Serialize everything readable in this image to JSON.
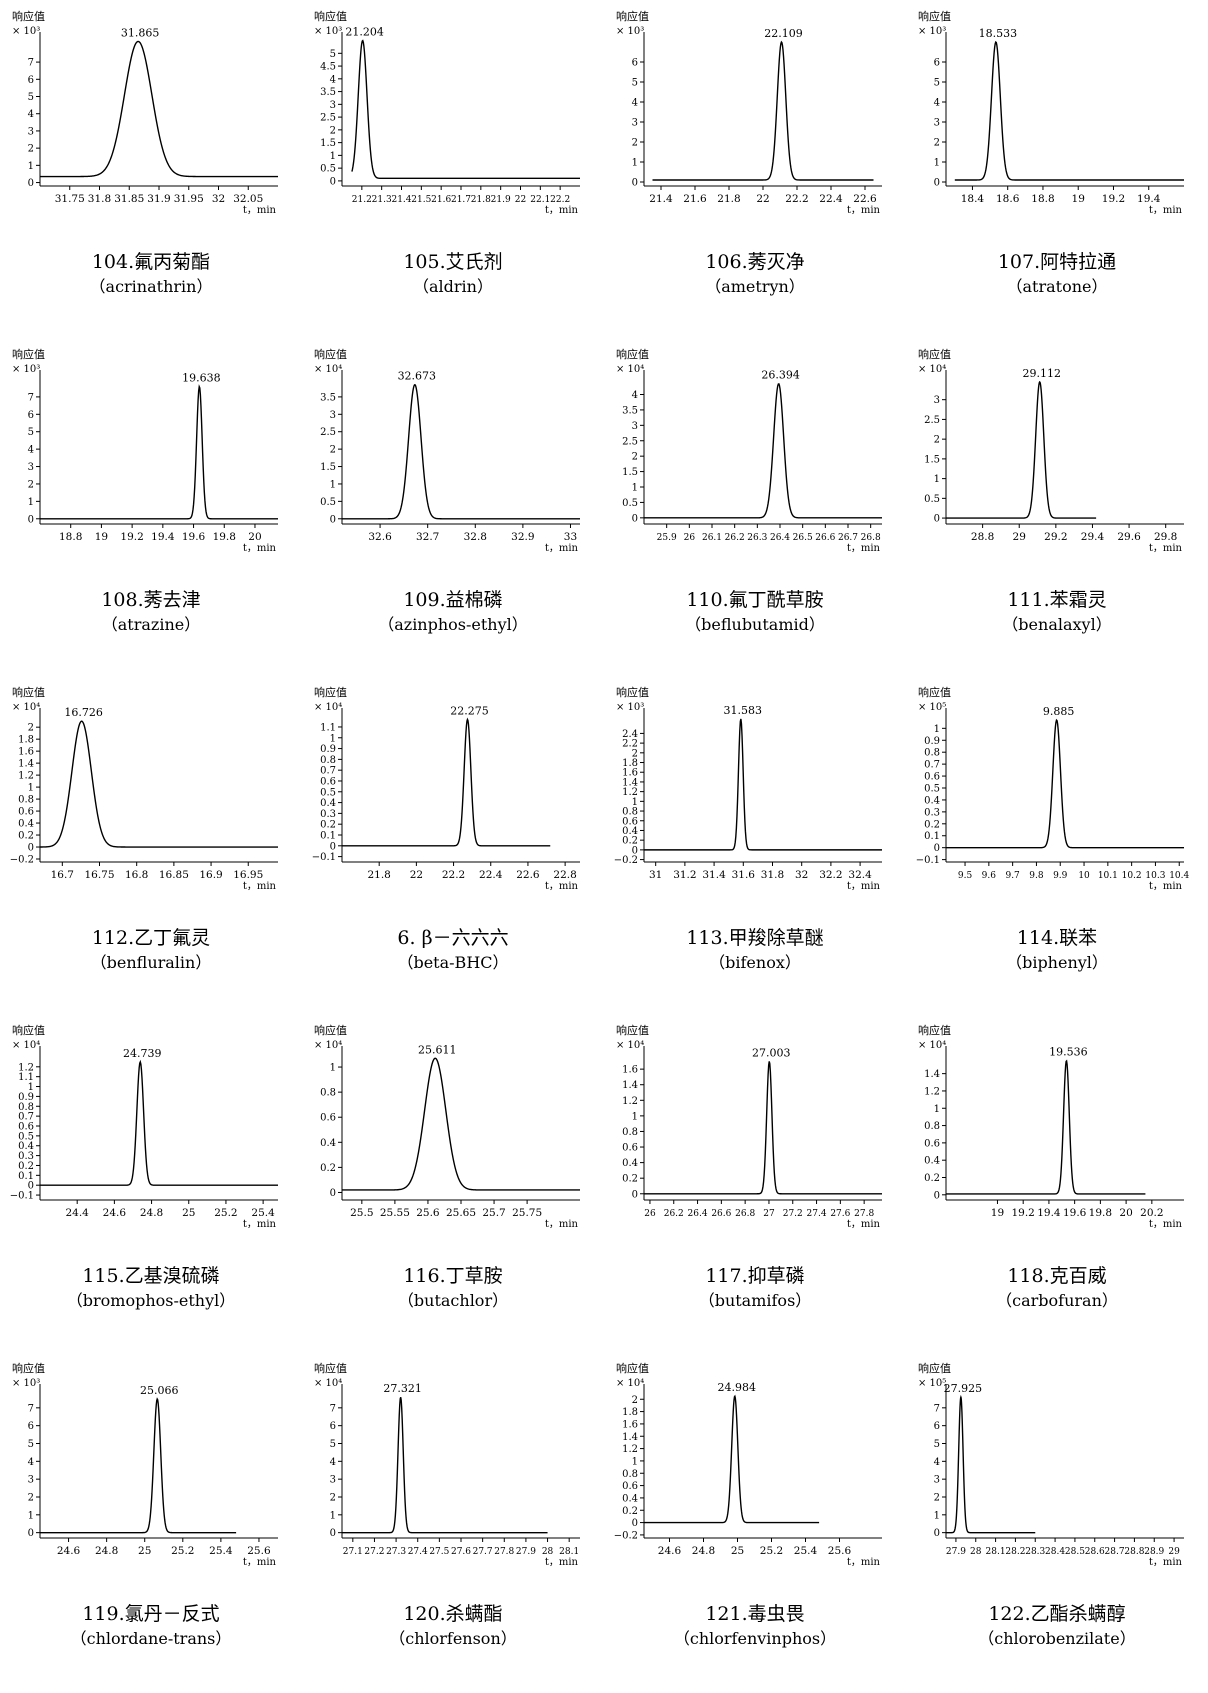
{
  "chart_data": [
    {
      "type": "line",
      "id": "c104",
      "caption_zh": "104.氟丙菊酯",
      "caption_en": "（acrinathrin）",
      "ylabel": "响应值",
      "yscale": "× 10³",
      "xunit": "t，min",
      "peak_label": "31.865",
      "xlim": [
        31.7,
        32.1
      ],
      "ylim": [
        -0.2,
        8.4
      ],
      "xticks": [
        "31.75",
        "31.8",
        "31.85",
        "31.9",
        "31.95",
        "32",
        "32.05"
      ],
      "yticks": [
        "0",
        "1",
        "2",
        "3",
        "4",
        "5",
        "6",
        "7"
      ],
      "peak": {
        "x": 31.865,
        "height": 8.2,
        "width": 0.023
      },
      "baseline": 0.35,
      "data_xrange": [
        31.7,
        32.1
      ]
    },
    {
      "type": "line",
      "id": "c105",
      "caption_zh": "105.艾氏剂",
      "caption_en": "（aldrin）",
      "ylabel": "响应值",
      "yscale": "× 10³",
      "xunit": "t，min",
      "peak_label": "21.204",
      "xlim": [
        21.1,
        22.3
      ],
      "ylim": [
        -0.2,
        5.6
      ],
      "xticks": [
        "21.2",
        "21.3",
        "21.4",
        "21.5",
        "21.6",
        "21.7",
        "21.8",
        "21.9",
        "22",
        "22.1",
        "22.2"
      ],
      "yticks": [
        "0",
        "0.5",
        "1",
        "1.5",
        "2",
        "2.5",
        "3",
        "3.5",
        "4",
        "4.5",
        "5"
      ],
      "peak": {
        "x": 21.204,
        "height": 5.5,
        "width": 0.022
      },
      "baseline": 0.1,
      "data_xrange": [
        21.15,
        22.3
      ]
    },
    {
      "type": "line",
      "id": "c106",
      "caption_zh": "106.莠灭净",
      "caption_en": "（ametryn）",
      "ylabel": "响应值",
      "yscale": "× 10³",
      "xunit": "t，min",
      "peak_label": "22.109",
      "xlim": [
        21.3,
        22.7
      ],
      "ylim": [
        -0.2,
        7.2
      ],
      "xticks": [
        "21.4",
        "21.6",
        "21.8",
        "22",
        "22.2",
        "22.4",
        "22.6"
      ],
      "yticks": [
        "0",
        "1",
        "2",
        "3",
        "4",
        "5",
        "6"
      ],
      "peak": {
        "x": 22.109,
        "height": 7.0,
        "width": 0.025
      },
      "baseline": 0.1,
      "data_xrange": [
        21.35,
        22.65
      ]
    },
    {
      "type": "line",
      "id": "c107",
      "caption_zh": "107.阿特拉通",
      "caption_en": "（atratone）",
      "ylabel": "响应值",
      "yscale": "× 10³",
      "xunit": "t，min",
      "peak_label": "18.533",
      "xlim": [
        18.25,
        19.6
      ],
      "ylim": [
        -0.2,
        7.2
      ],
      "xticks": [
        "18.4",
        "18.6",
        "18.8",
        "19",
        "19.2",
        "19.4"
      ],
      "yticks": [
        "0",
        "1",
        "2",
        "3",
        "4",
        "5",
        "6"
      ],
      "peak": {
        "x": 18.533,
        "height": 7.0,
        "width": 0.025
      },
      "baseline": 0.1,
      "data_xrange": [
        18.3,
        19.6
      ]
    },
    {
      "type": "line",
      "id": "c108",
      "caption_zh": "108.莠去津",
      "caption_en": "（atrazine）",
      "ylabel": "响应值",
      "yscale": "× 10³",
      "xunit": "t，min",
      "peak_label": "19.638",
      "xlim": [
        18.6,
        20.15
      ],
      "ylim": [
        -0.3,
        8.2
      ],
      "xticks": [
        "18.8",
        "19",
        "19.2",
        "19.4",
        "19.6",
        "19.8",
        "20"
      ],
      "yticks": [
        "0",
        "1",
        "2",
        "3",
        "4",
        "5",
        "6",
        "7"
      ],
      "peak": {
        "x": 19.638,
        "height": 7.6,
        "width": 0.018
      },
      "baseline": 0.0,
      "data_xrange": [
        18.6,
        20.15
      ]
    },
    {
      "type": "line",
      "id": "c109",
      "caption_zh": "109.益棉磷",
      "caption_en": "（azinphos-ethyl）",
      "ylabel": "响应值",
      "yscale": "× 10⁴",
      "xunit": "t，min",
      "peak_label": "32.673",
      "xlim": [
        32.52,
        33.02
      ],
      "ylim": [
        -0.15,
        4.1
      ],
      "xticks": [
        "32.6",
        "32.7",
        "32.8",
        "32.9",
        "33"
      ],
      "yticks": [
        "0",
        "0.5",
        "1",
        "1.5",
        "2",
        "2.5",
        "3",
        "3.5"
      ],
      "peak": {
        "x": 32.673,
        "height": 3.85,
        "width": 0.013
      },
      "baseline": 0.0,
      "data_xrange": [
        32.52,
        33.02
      ]
    },
    {
      "type": "line",
      "id": "c110",
      "caption_zh": "110.氟丁酰草胺",
      "caption_en": "（beflubutamid）",
      "ylabel": "响应值",
      "yscale": "× 10⁴",
      "xunit": "t，min",
      "peak_label": "26.394",
      "xlim": [
        25.8,
        26.85
      ],
      "ylim": [
        -0.2,
        4.6
      ],
      "xticks": [
        "25.9",
        "26",
        "26.1",
        "26.2",
        "26.3",
        "26.4",
        "26.5",
        "26.6",
        "26.7",
        "26.8"
      ],
      "yticks": [
        "0",
        "0.5",
        "1",
        "1.5",
        "2",
        "2.5",
        "3",
        "3.5",
        "4"
      ],
      "peak": {
        "x": 26.394,
        "height": 4.35,
        "width": 0.022
      },
      "baseline": 0.0,
      "data_xrange": [
        25.8,
        26.85
      ]
    },
    {
      "type": "line",
      "id": "c111",
      "caption_zh": "111.苯霜灵",
      "caption_en": "（benalaxyl）",
      "ylabel": "响应值",
      "yscale": "× 10⁴",
      "xunit": "t，min",
      "peak_label": "29.112",
      "xlim": [
        28.6,
        29.9
      ],
      "ylim": [
        -0.15,
        3.6
      ],
      "xticks": [
        "28.8",
        "29",
        "29.2",
        "29.4",
        "29.6",
        "29.8"
      ],
      "yticks": [
        "0",
        "0.5",
        "1",
        "1.5",
        "2",
        "2.5",
        "3"
      ],
      "peak": {
        "x": 29.112,
        "height": 3.45,
        "width": 0.022
      },
      "baseline": 0.0,
      "data_xrange": [
        28.6,
        29.42
      ]
    },
    {
      "type": "line",
      "id": "c112",
      "caption_zh": "112.乙丁氟灵",
      "caption_en": "（benfluralin）",
      "ylabel": "响应值",
      "yscale": "× 10⁴",
      "xunit": "t，min",
      "peak_label": "16.726",
      "xlim": [
        16.67,
        16.99
      ],
      "ylim": [
        -0.25,
        2.22
      ],
      "xticks": [
        "16.7",
        "16.75",
        "16.8",
        "16.85",
        "16.9",
        "16.95"
      ],
      "yticks": [
        "-0.2",
        "0",
        "0.2",
        "0.4",
        "0.6",
        "0.8",
        "1",
        "1.2",
        "1.4",
        "1.6",
        "1.8",
        "2"
      ],
      "peak": {
        "x": 16.726,
        "height": 2.1,
        "width": 0.013
      },
      "baseline": 0.0,
      "data_xrange": [
        16.67,
        16.99
      ]
    },
    {
      "type": "line",
      "id": "c113b",
      "caption_zh": "6. β－六六六",
      "caption_en": "（beta-BHC）",
      "ylabel": "响应值",
      "yscale": "× 10⁴",
      "xunit": "t，min",
      "peak_label": "22.275",
      "xlim": [
        21.6,
        22.88
      ],
      "ylim": [
        -0.15,
        1.22
      ],
      "xticks": [
        "21.8",
        "22",
        "22.2",
        "22.4",
        "22.6",
        "22.8"
      ],
      "yticks": [
        "-0.1",
        "0",
        "0.1",
        "0.2",
        "0.3",
        "0.4",
        "0.5",
        "0.6",
        "0.7",
        "0.8",
        "0.9",
        "1",
        "1.1"
      ],
      "peak": {
        "x": 22.275,
        "height": 1.17,
        "width": 0.018
      },
      "baseline": 0.0,
      "data_xrange": [
        21.6,
        22.72
      ]
    },
    {
      "type": "line",
      "id": "c113",
      "caption_zh": "113.甲羧除草醚",
      "caption_en": "（bifenox）",
      "ylabel": "响应值",
      "yscale": "× 10³",
      "xunit": "t，min",
      "peak_label": "31.583",
      "xlim": [
        30.92,
        32.55
      ],
      "ylim": [
        -0.25,
        2.8
      ],
      "xticks": [
        "31",
        "31.2",
        "31.4",
        "31.6",
        "31.8",
        "32",
        "32.2",
        "32.4"
      ],
      "yticks": [
        "-0.2",
        "0",
        "0.2",
        "0.4",
        "0.6",
        "0.8",
        "1",
        "1.2",
        "1.4",
        "1.6",
        "1.8",
        "2",
        "2.2",
        "2.4"
      ],
      "peak": {
        "x": 31.583,
        "height": 2.7,
        "width": 0.016
      },
      "baseline": 0.0,
      "data_xrange": [
        30.92,
        32.55
      ]
    },
    {
      "type": "line",
      "id": "c114",
      "caption_zh": "114.联苯",
      "caption_en": "（biphenyl）",
      "ylabel": "响应值",
      "yscale": "× 10⁵",
      "xunit": "t，min",
      "peak_label": "9.885",
      "xlim": [
        9.42,
        10.42
      ],
      "ylim": [
        -0.12,
        1.12
      ],
      "xticks": [
        "9.5",
        "9.6",
        "9.7",
        "9.8",
        "9.9",
        "10",
        "10.1",
        "10.2",
        "10.3",
        "10.4"
      ],
      "yticks": [
        "-0.1",
        "0",
        "0.1",
        "0.2",
        "0.3",
        "0.4",
        "0.5",
        "0.6",
        "0.7",
        "0.8",
        "0.9",
        "1"
      ],
      "peak": {
        "x": 9.885,
        "height": 1.07,
        "width": 0.016
      },
      "baseline": 0.0,
      "data_xrange": [
        9.42,
        10.42
      ]
    },
    {
      "type": "line",
      "id": "c115",
      "caption_zh": "115.乙基溴硫磷",
      "caption_en": "（bromophos-ethyl）",
      "ylabel": "响应值",
      "yscale": "× 10⁴",
      "xunit": "t，min",
      "peak_label": "24.739",
      "xlim": [
        24.2,
        25.48
      ],
      "ylim": [
        -0.15,
        1.35
      ],
      "xticks": [
        "24.4",
        "24.6",
        "24.8",
        "25",
        "25.2",
        "25.4"
      ],
      "yticks": [
        "-0.1",
        "0",
        "0.1",
        "0.2",
        "0.3",
        "0.4",
        "0.5",
        "0.6",
        "0.7",
        "0.8",
        "0.9",
        "1",
        "1.1",
        "1.2"
      ],
      "peak": {
        "x": 24.739,
        "height": 1.25,
        "width": 0.018
      },
      "baseline": 0.0,
      "data_xrange": [
        24.2,
        25.48
      ]
    },
    {
      "type": "line",
      "id": "c116",
      "caption_zh": "116.丁草胺",
      "caption_en": "（butachlor）",
      "ylabel": "响应值",
      "yscale": "× 10⁴",
      "xunit": "t，min",
      "peak_label": "25.611",
      "xlim": [
        25.47,
        25.83
      ],
      "ylim": [
        -0.06,
        1.12
      ],
      "xticks": [
        "25.5",
        "25.55",
        "25.6",
        "25.65",
        "25.7",
        "25.75"
      ],
      "yticks": [
        "0",
        "0.2",
        "0.4",
        "0.6",
        "0.8",
        "1"
      ],
      "peak": {
        "x": 25.611,
        "height": 1.07,
        "width": 0.016
      },
      "baseline": 0.02,
      "data_xrange": [
        25.47,
        25.83
      ]
    },
    {
      "type": "line",
      "id": "c117",
      "caption_zh": "117.抑草磷",
      "caption_en": "（butamifos）",
      "ylabel": "响应值",
      "yscale": "× 10⁴",
      "xunit": "t，min",
      "peak_label": "27.003",
      "xlim": [
        25.95,
        27.95
      ],
      "ylim": [
        -0.08,
        1.82
      ],
      "xticks": [
        "26",
        "26.2",
        "26.4",
        "26.6",
        "26.8",
        "27",
        "27.2",
        "27.4",
        "27.6",
        "27.8"
      ],
      "yticks": [
        "0",
        "0.2",
        "0.4",
        "0.6",
        "0.8",
        "1",
        "1.2",
        "1.4",
        "1.6"
      ],
      "peak": {
        "x": 27.003,
        "height": 1.7,
        "width": 0.022
      },
      "baseline": 0.0,
      "data_xrange": [
        25.95,
        27.95
      ]
    },
    {
      "type": "line",
      "id": "c118",
      "caption_zh": "118.克百威",
      "caption_en": "（carbofuran）",
      "ylabel": "响应值",
      "yscale": "× 10⁴",
      "xunit": "t，min",
      "peak_label": "19.536",
      "xlim": [
        18.6,
        20.45
      ],
      "ylim": [
        -0.06,
        1.65
      ],
      "xticks": [
        "19",
        "19.2",
        "19.4",
        "19.6",
        "19.8",
        "20",
        "20.2"
      ],
      "yticks": [
        "0",
        "0.2",
        "0.4",
        "0.6",
        "0.8",
        "1",
        "1.2",
        "1.4"
      ],
      "peak": {
        "x": 19.536,
        "height": 1.55,
        "width": 0.022
      },
      "baseline": 0.01,
      "data_xrange": [
        18.6,
        20.15
      ]
    },
    {
      "type": "line",
      "id": "c119",
      "caption_zh": "119.氯丹－反式",
      "caption_en": "（chlordane-trans）",
      "ylabel": "响应值",
      "yscale": "× 10³",
      "xunit": "t，min",
      "peak_label": "25.066",
      "xlim": [
        24.45,
        25.7
      ],
      "ylim": [
        -0.3,
        8.0
      ],
      "xticks": [
        "24.6",
        "24.8",
        "25",
        "25.2",
        "25.4",
        "25.6"
      ],
      "yticks": [
        "0",
        "1",
        "2",
        "3",
        "4",
        "5",
        "6",
        "7"
      ],
      "peak": {
        "x": 25.066,
        "height": 7.5,
        "width": 0.018
      },
      "baseline": 0.0,
      "data_xrange": [
        24.45,
        25.48
      ]
    },
    {
      "type": "line",
      "id": "c120",
      "caption_zh": "120.杀螨酯",
      "caption_en": "（chlorfenson）",
      "ylabel": "响应值",
      "yscale": "× 10⁴",
      "xunit": "t，min",
      "peak_label": "27.321",
      "xlim": [
        27.05,
        28.15
      ],
      "ylim": [
        -0.3,
        8.0
      ],
      "xticks": [
        "27.1",
        "27.2",
        "27.3",
        "27.4",
        "27.5",
        "27.6",
        "27.7",
        "27.8",
        "27.9",
        "28",
        "28.1"
      ],
      "yticks": [
        "0",
        "1",
        "2",
        "3",
        "4",
        "5",
        "6",
        "7"
      ],
      "peak": {
        "x": 27.321,
        "height": 7.6,
        "width": 0.012
      },
      "baseline": 0.0,
      "data_xrange": [
        27.05,
        28.0
      ]
    },
    {
      "type": "line",
      "id": "c121",
      "caption_zh": "121.毒虫畏",
      "caption_en": "（chlorfenvinphos）",
      "ylabel": "响应值",
      "yscale": "× 10⁴",
      "xunit": "t，min",
      "peak_label": "24.984",
      "xlim": [
        24.45,
        25.85
      ],
      "ylim": [
        -0.25,
        2.15
      ],
      "xticks": [
        "24.6",
        "24.8",
        "25",
        "25.2",
        "25.4",
        "25.6"
      ],
      "yticks": [
        "-0.2",
        "0",
        "0.2",
        "0.4",
        "0.6",
        "0.8",
        "1",
        "1.2",
        "1.4",
        "1.6",
        "1.8",
        "2"
      ],
      "peak": {
        "x": 24.984,
        "height": 2.05,
        "width": 0.018
      },
      "baseline": 0.0,
      "data_xrange": [
        24.45,
        25.48
      ]
    },
    {
      "type": "line",
      "id": "c122",
      "caption_zh": "122.乙酯杀螨醇",
      "caption_en": "（chlorobenzilate）",
      "ylabel": "响应值",
      "yscale": "× 10⁵",
      "xunit": "t，min",
      "peak_label": "27.925",
      "xlim": [
        27.85,
        29.05
      ],
      "ylim": [
        -0.3,
        8.0
      ],
      "xticks": [
        "27.9",
        "28",
        "28.1",
        "28.2",
        "28.3",
        "28.4",
        "28.5",
        "28.6",
        "28.7",
        "28.8",
        "28.9",
        "29"
      ],
      "yticks": [
        "0",
        "1",
        "2",
        "3",
        "4",
        "5",
        "6",
        "7"
      ],
      "peak": {
        "x": 27.925,
        "height": 7.6,
        "width": 0.011
      },
      "baseline": 0.0,
      "data_xrange": [
        27.85,
        28.3
      ]
    }
  ]
}
